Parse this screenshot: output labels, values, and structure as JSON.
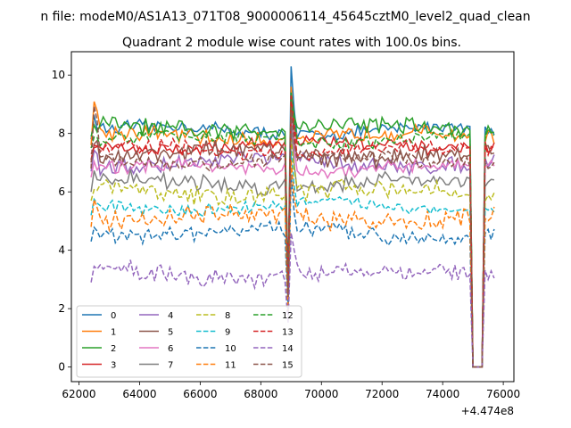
{
  "suptitle": "n file: modeM0/AS1A13_071T08_9000006114_45645cztM0_level2_quad_clean",
  "chart_data": {
    "type": "line",
    "title": "Quadrant 2 module wise count rates with 100.0s bins.",
    "xlabel": "",
    "ylabel": "",
    "x_offset_label": "+4.474e8",
    "xlim": [
      61750,
      76350
    ],
    "ylim": [
      -0.5,
      10.8
    ],
    "x_ticks": [
      62000,
      64000,
      66000,
      68000,
      70000,
      72000,
      74000,
      76000
    ],
    "y_ticks": [
      0,
      2,
      4,
      6,
      8,
      10
    ],
    "x_range": [
      62400,
      75700
    ],
    "bin": 100,
    "gap_start": 69000,
    "zero_interval": [
      74950,
      75350
    ],
    "legend_position": "lower left",
    "legend_columns": 4,
    "series": [
      {
        "name": "0",
        "color": "#1f77b4",
        "dash": "solid",
        "base": 8.1,
        "start": 8.6,
        "peak": 10.3,
        "dip": 2.9,
        "restart": 8.4
      },
      {
        "name": "1",
        "color": "#ff7f0e",
        "dash": "solid",
        "base": 7.9,
        "start": 9.3,
        "peak": 9.6,
        "dip": 2.6,
        "restart": 8.2
      },
      {
        "name": "2",
        "color": "#2ca02c",
        "dash": "solid",
        "base": 8.2,
        "start": 8.3,
        "peak": 9.4,
        "dip": 2.7,
        "restart": 8.0
      },
      {
        "name": "3",
        "color": "#d62728",
        "dash": "solid",
        "base": 7.6,
        "start": 7.5,
        "peak": 9.3,
        "dip": 2.8,
        "restart": 7.9
      },
      {
        "name": "4",
        "color": "#9467bd",
        "dash": "solid",
        "base": 7.0,
        "start": 7.2,
        "peak": 8.8,
        "dip": 2.5,
        "restart": 7.3
      },
      {
        "name": "5",
        "color": "#8c564b",
        "dash": "solid",
        "base": 7.3,
        "start": 8.0,
        "peak": 9.0,
        "dip": 2.4,
        "restart": 7.6
      },
      {
        "name": "6",
        "color": "#e377c2",
        "dash": "solid",
        "base": 6.8,
        "start": 7.0,
        "peak": 8.6,
        "dip": 2.3,
        "restart": 7.0
      },
      {
        "name": "7",
        "color": "#7f7f7f",
        "dash": "solid",
        "base": 6.3,
        "start": 6.6,
        "peak": 8.3,
        "dip": 2.2,
        "restart": 6.6
      },
      {
        "name": "8",
        "color": "#bcbd22",
        "dash": "dashed",
        "base": 6.0,
        "start": 6.2,
        "peak": 7.8,
        "dip": 2.1,
        "restart": 6.2
      },
      {
        "name": "9",
        "color": "#17becf",
        "dash": "dashed",
        "base": 5.5,
        "start": 5.7,
        "peak": 7.4,
        "dip": 2.0,
        "restart": 5.8
      },
      {
        "name": "10",
        "color": "#1f77b4",
        "dash": "dashed",
        "base": 4.6,
        "start": 4.9,
        "peak": 6.6,
        "dip": 1.8,
        "restart": 4.8
      },
      {
        "name": "11",
        "color": "#ff7f0e",
        "dash": "dashed",
        "base": 5.1,
        "start": 5.8,
        "peak": 7.1,
        "dip": 1.9,
        "restart": 5.3
      },
      {
        "name": "12",
        "color": "#2ca02c",
        "dash": "dashed",
        "base": 7.8,
        "start": 8.0,
        "peak": 9.2,
        "dip": 2.6,
        "restart": 8.1
      },
      {
        "name": "13",
        "color": "#d62728",
        "dash": "dashed",
        "base": 7.4,
        "start": 7.7,
        "peak": 9.1,
        "dip": 2.5,
        "restart": 7.7
      },
      {
        "name": "14",
        "color": "#9467bd",
        "dash": "dashed",
        "base": 3.2,
        "start": 3.5,
        "peak": 4.6,
        "dip": 1.5,
        "restart": 3.3
      },
      {
        "name": "15",
        "color": "#8c564b",
        "dash": "dashed",
        "base": 7.1,
        "start": 9.3,
        "peak": 8.9,
        "dip": 2.4,
        "restart": 7.4
      }
    ]
  }
}
